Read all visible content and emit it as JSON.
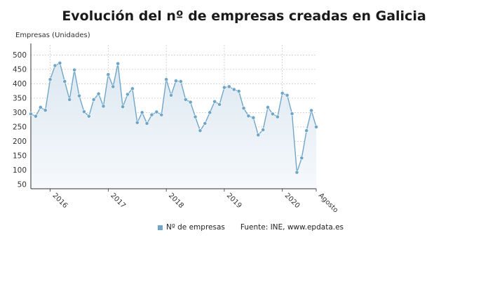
{
  "title": "Evolución del nº de empresas creadas en Galicia",
  "legend": {
    "series_label": "Nº de empresas",
    "source": "Fuente: INE, www.epdata.es"
  },
  "colors": {
    "line": "#6fa6c8",
    "marker": "#6fa6c8",
    "area_top": "#dde8f1",
    "area_bottom": "#f6f9fc",
    "grid": "#c9c9c9",
    "axis": "#333333"
  },
  "chart_data": {
    "type": "area",
    "title": "Evolución del nº de empresas creadas en Galicia",
    "ylabel": "Empresas (Unidades)",
    "xlabel": "",
    "ylim": [
      35,
      535
    ],
    "yticks": [
      50,
      100,
      150,
      200,
      250,
      300,
      350,
      400,
      450,
      500
    ],
    "grid": true,
    "legend_position": "bottom",
    "x_tick_labels": [
      {
        "label": "2016",
        "index": 4
      },
      {
        "label": "2017",
        "index": 16
      },
      {
        "label": "2018",
        "index": 28
      },
      {
        "label": "2019",
        "index": 40
      },
      {
        "label": "2020",
        "index": 52
      },
      {
        "label": "Agosto",
        "index": 59
      }
    ],
    "series": [
      {
        "name": "Nº de empresas",
        "values": [
          295,
          287,
          318,
          308,
          415,
          463,
          472,
          408,
          345,
          448,
          358,
          303,
          287,
          345,
          365,
          322,
          432,
          390,
          470,
          320,
          363,
          383,
          265,
          300,
          262,
          292,
          302,
          292,
          415,
          360,
          410,
          408,
          345,
          336,
          285,
          237,
          262,
          300,
          338,
          328,
          387,
          390,
          380,
          374,
          315,
          288,
          282,
          222,
          240,
          318,
          295,
          285,
          367,
          360,
          296,
          92,
          142,
          237,
          307,
          250
        ]
      }
    ]
  }
}
